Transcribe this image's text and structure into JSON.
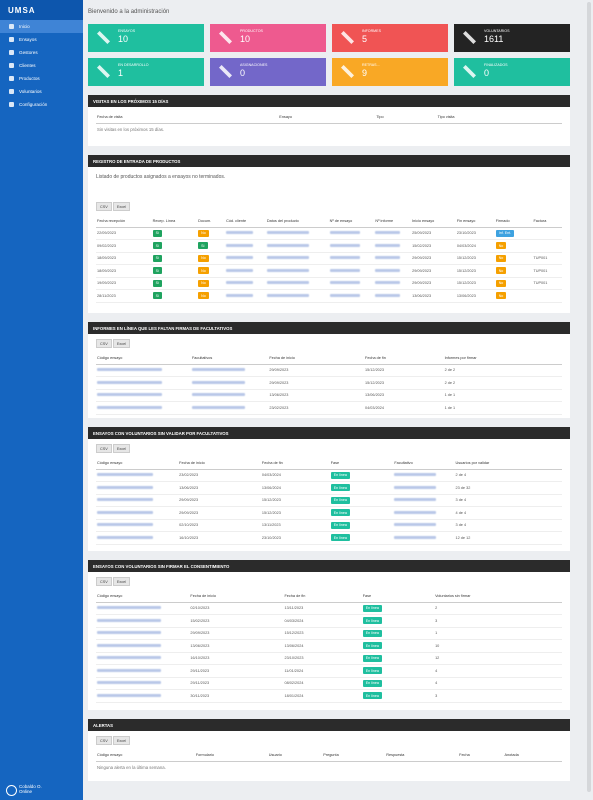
{
  "sidebar": {
    "logo": "UMSA",
    "menu": [
      "Inicio",
      "Ensayos",
      "Gestores",
      "Clientes",
      "Productos",
      "Voluntarios",
      "Configuración"
    ],
    "user": {
      "name": "Cobaldo O.",
      "status": "Online"
    }
  },
  "header": {
    "title": "Bienvenido a la administración"
  },
  "cards": [
    {
      "label": "ENSAYOS",
      "value": 10,
      "color": "#1fbf9f"
    },
    {
      "label": "PRODUCTOS",
      "value": 10,
      "color": "#ee5a8f"
    },
    {
      "label": "INFORMES",
      "value": 5,
      "color": "#f05454"
    },
    {
      "label": "VOLUNTARIOS",
      "value": 1611,
      "color": "#232323"
    },
    {
      "label": "EN DESARROLLO",
      "value": 1,
      "color": "#1fbf9f"
    },
    {
      "label": "ASIGNACIONES",
      "value": 0,
      "color": "#7367c9"
    },
    {
      "label": "RETRAS...",
      "value": 9,
      "color": "#f9a825"
    },
    {
      "label": "FINALIZADOS",
      "value": 0,
      "color": "#1fbf9f"
    }
  ],
  "sections": [
    {
      "title": "VISITAS EN LOS PRÓXIMOS 15 DÍAS",
      "columns": [
        "Fecha de visita",
        "Ensayo",
        "Tipo",
        "Tipo visita"
      ],
      "rows": [],
      "empty": "Sin visitas en los próximos 15 días."
    },
    {
      "title": "REGISTRO DE ENTRADA DE PRODUCTOS",
      "note": "Listado de productos asignados a ensayos no terminados.",
      "buttons": [
        "CSV",
        "Excel"
      ],
      "columns": [
        "Fecha recepción",
        "Recep. Línea",
        "Docum.",
        "Cód. cliente",
        "Datos del producto",
        "Nº de ensayo",
        "Nº informe",
        "Inicio ensayo",
        "Fin ensayo",
        "Firmado",
        "Factura"
      ],
      "rows": [
        [
          "22/09/2023",
          "Sí",
          "No",
          null,
          null,
          null,
          null,
          "25/09/2023",
          "23/10/2023",
          "Inf. Ent.",
          ""
        ],
        [
          "09/02/2023",
          "Sí",
          "Sí",
          null,
          null,
          null,
          null,
          "15/02/2023",
          "04/03/2024",
          "No",
          ""
        ],
        [
          "18/09/2023",
          "Sí",
          "No",
          null,
          null,
          null,
          null,
          "29/09/2023",
          "15/12/2023",
          "No",
          "TUP001"
        ],
        [
          "18/09/2023",
          "Sí",
          "No",
          null,
          null,
          null,
          null,
          "29/09/2023",
          "15/12/2023",
          "No",
          "TUP001"
        ],
        [
          "19/09/2023",
          "Sí",
          "No",
          null,
          null,
          null,
          null,
          "29/09/2023",
          "15/12/2023",
          "No",
          "TUP001"
        ],
        [
          "28/11/2023",
          "Sí",
          "No",
          null,
          null,
          null,
          null,
          "13/06/2023",
          "13/06/2023",
          "No",
          ""
        ]
      ]
    },
    {
      "title": "INFORMES EN LÍNEA QUE LES FALTAN FIRMAS DE FACULTATIVOS",
      "buttons": [
        "CSV",
        "Excel"
      ],
      "columns": [
        "Código ensayo",
        "Facultativos",
        "Fecha de inicio",
        "Fecha de fin",
        "Informes por firmar"
      ],
      "rows": [
        [
          null,
          null,
          "29/09/2023",
          "15/12/2023",
          "2 de 2"
        ],
        [
          null,
          null,
          "29/09/2023",
          "15/12/2023",
          "2 de 2"
        ],
        [
          null,
          null,
          "13/06/2023",
          "13/06/2023",
          "1 de 1"
        ],
        [
          null,
          null,
          "23/02/2023",
          "04/03/2024",
          "1 de 1"
        ]
      ]
    },
    {
      "title": "ENSAYOS CON VOLUNTARIOS SIN VALIDAR POR FACULTATIVOS",
      "buttons": [
        "CSV",
        "Excel"
      ],
      "columns": [
        "Código ensayo",
        "Fecha de inicio",
        "Fecha de fin",
        "Fase",
        "Facultativo",
        "Usuarios por validar"
      ],
      "rows": [
        [
          null,
          "23/02/2023",
          "04/03/2024",
          "En línea",
          null,
          "2 de 4"
        ],
        [
          null,
          "13/06/2023",
          "13/06/2024",
          "En línea",
          null,
          "23 de 32"
        ],
        [
          null,
          "29/09/2023",
          "15/12/2023",
          "En línea",
          null,
          "3 de 4"
        ],
        [
          null,
          "29/09/2023",
          "15/12/2023",
          "En línea",
          null,
          "4 de 4"
        ],
        [
          null,
          "02/10/2023",
          "13/11/2023",
          "En línea",
          null,
          "3 de 4"
        ],
        [
          null,
          "16/10/2023",
          "23/10/2023",
          "En línea",
          null,
          "12 de 12"
        ]
      ]
    },
    {
      "title": "ENSAYOS CON VOLUNTARIOS SIN FIRMAR EL CONSENTIMIENTO",
      "buttons": [
        "CSV",
        "Excel"
      ],
      "columns": [
        "Código ensayo",
        "Fecha de inicio",
        "Fecha de fin",
        "Fase",
        "Voluntarios sin firmar"
      ],
      "rows": [
        [
          null,
          "02/10/2023",
          "13/11/2023",
          "En línea",
          "2"
        ],
        [
          null,
          "15/02/2023",
          "04/03/2024",
          "En línea",
          "3"
        ],
        [
          null,
          "29/09/2023",
          "15/12/2023",
          "En línea",
          "1"
        ],
        [
          null,
          "13/06/2023",
          "13/06/2024",
          "En línea",
          "10"
        ],
        [
          null,
          "16/10/2023",
          "23/10/2023",
          "En línea",
          "12"
        ],
        [
          null,
          "29/11/2023",
          "11/01/2024",
          "En línea",
          "4"
        ],
        [
          null,
          "29/11/2023",
          "08/02/2024",
          "En línea",
          "4"
        ],
        [
          null,
          "30/11/2023",
          "18/01/2024",
          "En línea",
          "3"
        ]
      ]
    },
    {
      "title": "ALERTAS",
      "buttons": [
        "CSV",
        "Excel"
      ],
      "columns": [
        "Código ensayo",
        "Formulario",
        "Usuario",
        "Pregunta",
        "Respuesta",
        "Fecha",
        "Anotada"
      ],
      "rows": [],
      "empty": "Ninguna alerta en la última semana."
    }
  ]
}
